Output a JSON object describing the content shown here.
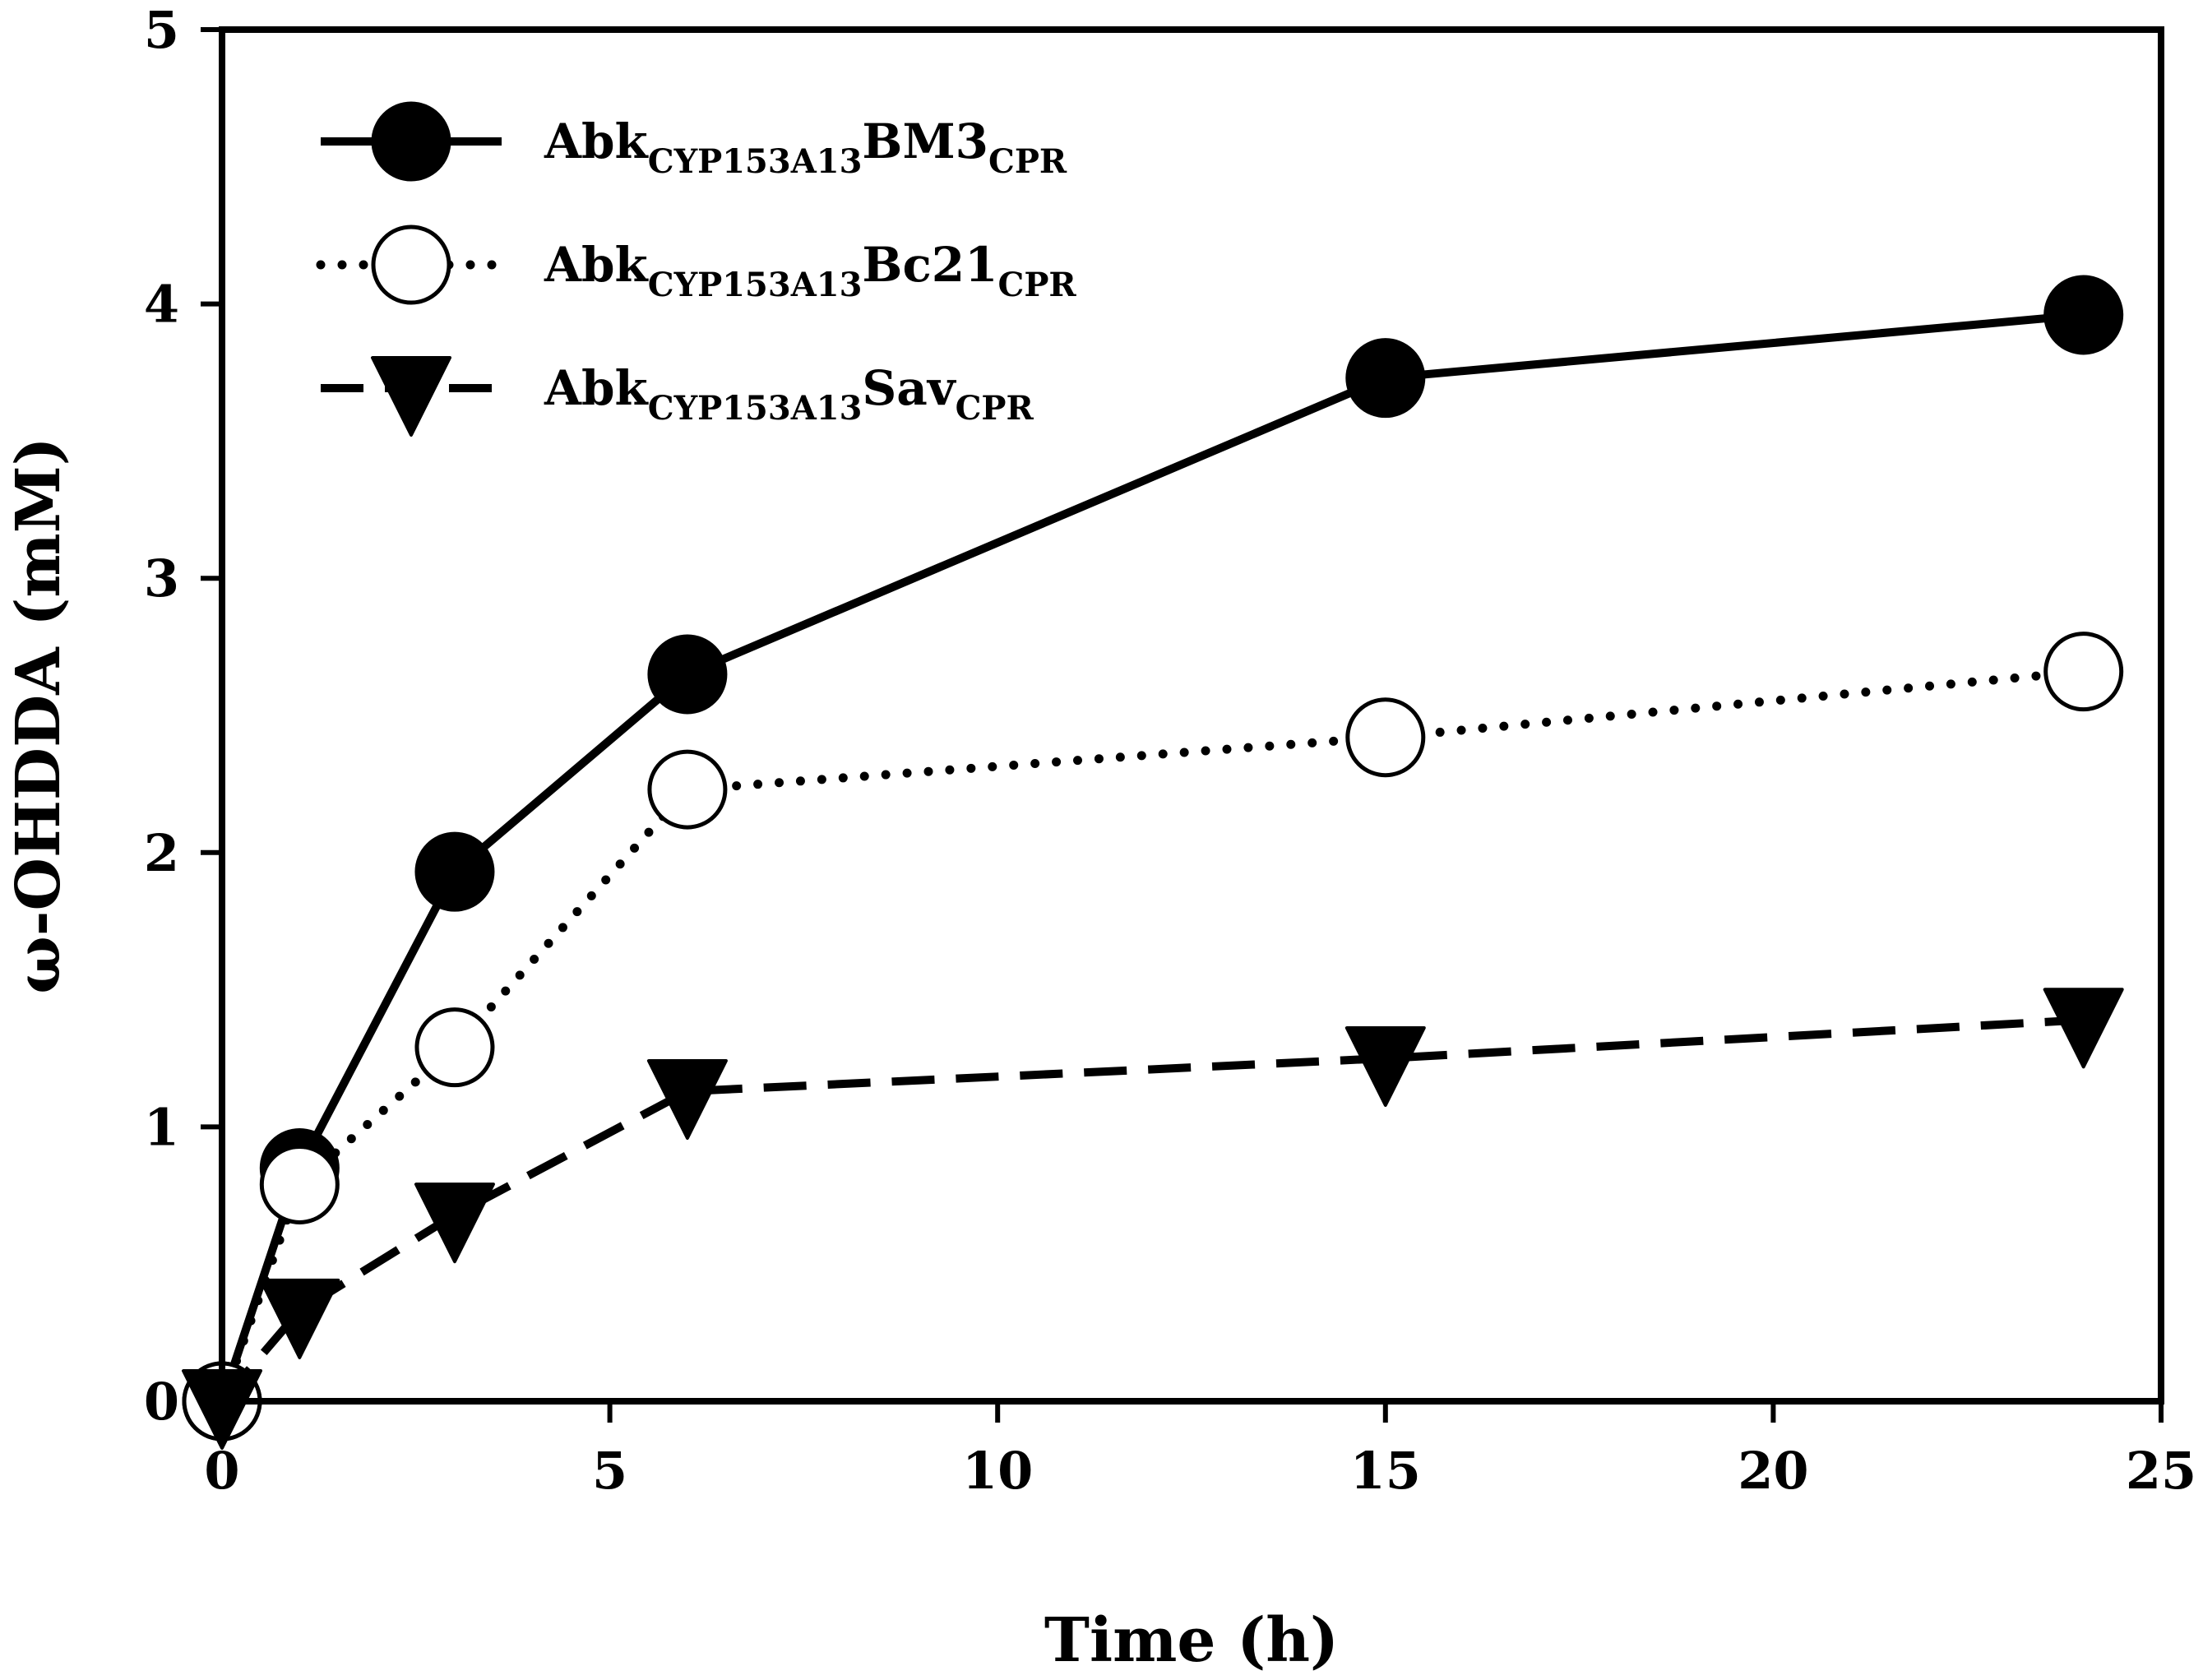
{
  "chart_data": {
    "type": "line",
    "title": "",
    "xlabel": "Time (h)",
    "ylabel": "ω-OHDDA (mM)",
    "xlim": [
      0,
      25
    ],
    "ylim": [
      0,
      5
    ],
    "xticks": [
      0,
      5,
      10,
      15,
      20,
      25
    ],
    "yticks": [
      0,
      1,
      2,
      3,
      4,
      5
    ],
    "grid": false,
    "legend_position": "top-left",
    "series": [
      {
        "name": "AbkCYP153A13BM3CPR",
        "legend": {
          "base": "Abk",
          "sub1": "CYP153A13",
          "mid": "BM3",
          "sub2": "CPR"
        },
        "marker": "filled-circle",
        "line": "solid",
        "x": [
          0,
          1,
          3,
          6,
          15,
          24
        ],
        "y": [
          0,
          0.85,
          1.93,
          2.65,
          3.73,
          3.96
        ]
      },
      {
        "name": "AbkCYP153A13Bc21CPR",
        "legend": {
          "base": "Abk",
          "sub1": "CYP153A13",
          "mid": "Bc21",
          "sub2": "CPR"
        },
        "marker": "open-circle",
        "line": "dotted",
        "x": [
          0,
          1,
          3,
          6,
          15,
          24
        ],
        "y": [
          0,
          0.79,
          1.29,
          2.23,
          2.42,
          2.66
        ]
      },
      {
        "name": "AbkCYP153A13SavCPR",
        "legend": {
          "base": "Abk",
          "sub1": "CYP153A13",
          "mid": "Sav",
          "sub2": "CPR"
        },
        "marker": "filled-triangle-down",
        "line": "dashed",
        "x": [
          0,
          1,
          3,
          6,
          15,
          24
        ],
        "y": [
          0,
          0.33,
          0.68,
          1.13,
          1.25,
          1.39
        ]
      }
    ]
  }
}
